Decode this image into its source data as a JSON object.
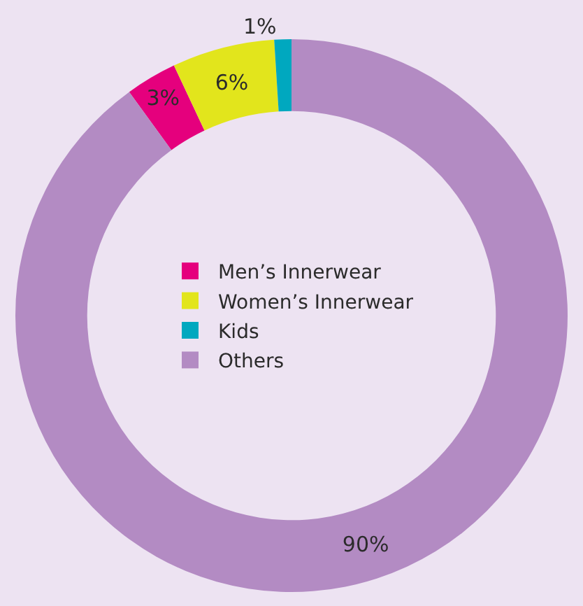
{
  "chart_data": {
    "type": "donut",
    "categories": [
      "Men’s Innerwear",
      "Women’s Innerwear",
      "Kids",
      "Others"
    ],
    "values": [
      3,
      6,
      1,
      90
    ],
    "colors": [
      "#e5007d",
      "#e2e51c",
      "#00a8bf",
      "#b38bc3"
    ],
    "value_labels": [
      "3%",
      "6%",
      "1%",
      "90%"
    ],
    "legend": "center"
  }
}
